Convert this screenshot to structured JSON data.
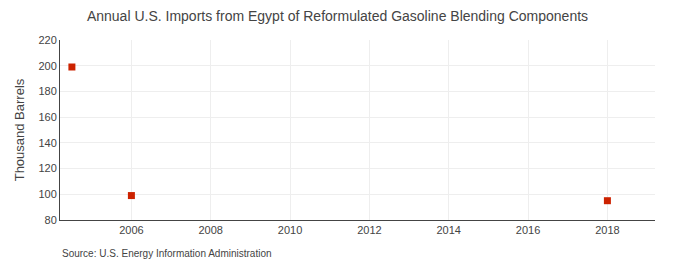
{
  "chart_data": {
    "type": "scatter",
    "title": "Annual U.S. Imports from Egypt of Reformulated Gasoline Blending Components",
    "ylabel": "Thousand Barrels",
    "annotations": [
      "Source: U.S. Energy Information Administration"
    ],
    "x": [
      2004.5,
      2006,
      2018
    ],
    "values": [
      199,
      99,
      95
    ],
    "color": "#cc2200",
    "marker": "square",
    "xlim": [
      2004.2,
      2019.2
    ],
    "xticks": [
      2006,
      2008,
      2010,
      2012,
      2014,
      2016,
      2018
    ],
    "ylim": [
      80,
      220
    ],
    "yticks": [
      80,
      100,
      120,
      140,
      160,
      180,
      200,
      220
    ],
    "grid": true
  }
}
